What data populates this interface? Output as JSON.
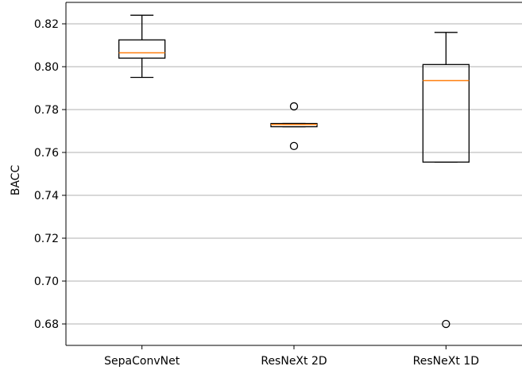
{
  "chart_data": {
    "type": "box",
    "title": "",
    "xlabel": "",
    "ylabel": "BACC",
    "ylim": [
      0.67,
      0.83
    ],
    "yticks": [
      0.68,
      0.7,
      0.72,
      0.74,
      0.76,
      0.78,
      0.8,
      0.82
    ],
    "ytick_labels": [
      "0.68",
      "0.70",
      "0.72",
      "0.74",
      "0.76",
      "0.78",
      "0.80",
      "0.82"
    ],
    "grid": "horizontal",
    "categories": [
      "SepaConvNet",
      "ResNeXt 2D",
      "ResNeXt 1D"
    ],
    "boxes": [
      {
        "category": "SepaConvNet",
        "whisker_low": 0.795,
        "q1": 0.804,
        "median": 0.8065,
        "q3": 0.8125,
        "whisker_high": 0.824,
        "outliers": []
      },
      {
        "category": "ResNeXt 2D",
        "whisker_low": 0.772,
        "q1": 0.772,
        "median": 0.773,
        "q3": 0.7735,
        "whisker_high": 0.7735,
        "outliers": [
          0.7815,
          0.763
        ]
      },
      {
        "category": "ResNeXt 1D",
        "whisker_low": 0.7555,
        "q1": 0.7555,
        "median": 0.7935,
        "q3": 0.801,
        "whisker_high": 0.816,
        "outliers": [
          0.68
        ]
      }
    ],
    "colors": {
      "box": "#000000",
      "median": "#ff7f0e",
      "grid": "#b0b0b0"
    }
  }
}
